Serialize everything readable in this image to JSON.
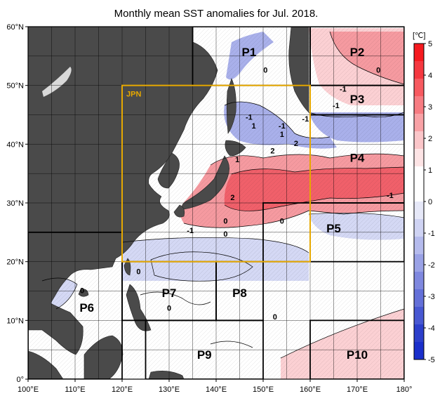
{
  "title": "Monthly mean SST anomalies for Jul. 2018.",
  "colors": {
    "land": "#4a4a4a",
    "ocean": "#ffffff",
    "jpn_box": "#e6a800",
    "region_box": "#000000",
    "positive_3": "#f0606a",
    "positive_2": "#f59aa0",
    "positive_1": "#fbd0d3",
    "negative_1": "#d4d8f4",
    "negative_2": "#a9b0ea",
    "negative_3": "#7f88dd"
  },
  "map": {
    "lon_range": [
      100,
      180
    ],
    "lat_range": [
      0,
      60
    ],
    "lon_ticks": [
      "100°E",
      "110°E",
      "120°E",
      "130°E",
      "140°E",
      "150°E",
      "160°E",
      "170°E",
      "180°"
    ],
    "lat_ticks": [
      "0°",
      "10°N",
      "20°N",
      "30°N",
      "40°N",
      "50°N",
      "60°N"
    ],
    "grid": true
  },
  "jpn_label": "JPN",
  "regions": [
    {
      "name": "P1",
      "lon": [
        135,
        160
      ],
      "lat": [
        50,
        60
      ]
    },
    {
      "name": "P2",
      "lon": [
        160,
        180
      ],
      "lat": [
        50,
        60
      ]
    },
    {
      "name": "P3",
      "lon": [
        160,
        180
      ],
      "lat": [
        45,
        50
      ]
    },
    {
      "name": "P4",
      "lon": [
        160,
        180
      ],
      "lat": [
        30,
        45
      ]
    },
    {
      "name": "P5",
      "lon": [
        150,
        180
      ],
      "lat": [
        20,
        30
      ]
    },
    {
      "name": "P6",
      "lon": [
        100,
        120
      ],
      "lat": [
        0,
        25
      ]
    },
    {
      "name": "P7",
      "lon": [
        120,
        140
      ],
      "lat": [
        10,
        20
      ]
    },
    {
      "name": "P8",
      "lon": [
        140,
        150
      ],
      "lat": [
        10,
        20
      ]
    },
    {
      "name": "P9",
      "lon": [
        125,
        150
      ],
      "lat": [
        0,
        10
      ]
    },
    {
      "name": "P10",
      "lon": [
        160,
        180
      ],
      "lat": [
        0,
        10
      ]
    }
  ],
  "region_label_positions": [
    {
      "name": "P1",
      "lon": 147,
      "lat": 55.5
    },
    {
      "name": "P2",
      "lon": 170,
      "lat": 55.5
    },
    {
      "name": "P3",
      "lon": 170,
      "lat": 47.5
    },
    {
      "name": "P4",
      "lon": 170,
      "lat": 37.5
    },
    {
      "name": "P5",
      "lon": 165,
      "lat": 25.5
    },
    {
      "name": "P6",
      "lon": 112.5,
      "lat": 12
    },
    {
      "name": "P7",
      "lon": 130,
      "lat": 14.5
    },
    {
      "name": "P8",
      "lon": 145,
      "lat": 14.5
    },
    {
      "name": "P9",
      "lon": 137.5,
      "lat": 4
    },
    {
      "name": "P10",
      "lon": 170,
      "lat": 4
    }
  ],
  "contour_labels": [
    {
      "text": "0",
      "lon": 150.5,
      "lat": 52.5
    },
    {
      "text": "0",
      "lon": 174.5,
      "lat": 52.5
    },
    {
      "text": "-1",
      "lon": 167,
      "lat": 49.3
    },
    {
      "text": "-1",
      "lon": 165.5,
      "lat": 46.5
    },
    {
      "text": "-1",
      "lon": 147,
      "lat": 44.5
    },
    {
      "text": "-1",
      "lon": 154,
      "lat": 43
    },
    {
      "text": "-1",
      "lon": 159,
      "lat": 44.2
    },
    {
      "text": "1",
      "lon": 154,
      "lat": 41.6
    },
    {
      "text": "1",
      "lon": 148,
      "lat": 43
    },
    {
      "text": "2",
      "lon": 157,
      "lat": 40
    },
    {
      "text": "2",
      "lon": 152,
      "lat": 38.8
    },
    {
      "text": "1",
      "lon": 144.5,
      "lat": 37.3
    },
    {
      "text": "2",
      "lon": 143.5,
      "lat": 30.8
    },
    {
      "text": "0",
      "lon": 142,
      "lat": 26.8
    },
    {
      "text": "-1",
      "lon": 134.5,
      "lat": 25.2
    },
    {
      "text": "0",
      "lon": 142,
      "lat": 24.6
    },
    {
      "text": "0",
      "lon": 154,
      "lat": 26.8
    },
    {
      "text": "-1",
      "lon": 177,
      "lat": 31.2
    },
    {
      "text": "0",
      "lon": 111.5,
      "lat": 15
    },
    {
      "text": "0",
      "lon": 123.5,
      "lat": 18.2
    },
    {
      "text": "0",
      "lon": 130,
      "lat": 12
    },
    {
      "text": "0",
      "lon": 152.5,
      "lat": 10.5
    }
  ],
  "colorbar": {
    "unit": "[℃]",
    "ticks": [
      "5",
      "4",
      "3",
      "2",
      "1",
      "0",
      "-1",
      "-2",
      "-3",
      "-4",
      "-5"
    ],
    "colors": [
      "#f51a1f",
      "#f53840",
      "#f75a60",
      "#f77c82",
      "#f9a2a6",
      "#fbc6c9",
      "#fde4e5",
      "#ffffff",
      "#ffffff",
      "#e6e8f8",
      "#cfd3f3",
      "#b5bbed",
      "#9aa2e6",
      "#7f88df",
      "#6470d8",
      "#4858d2",
      "#2c3fcb",
      "#1a2fcb"
    ]
  }
}
